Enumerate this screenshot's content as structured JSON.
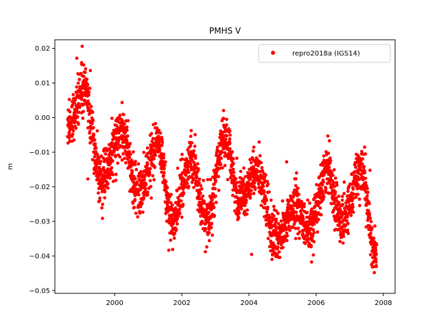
{
  "chart_data": {
    "type": "scatter",
    "title": "PMHS V",
    "xlabel": "",
    "ylabel": "m",
    "xlim": [
      1998.22,
      2008.35
    ],
    "ylim": [
      -0.0508,
      0.0225
    ],
    "x_ticks": [
      2000,
      2002,
      2004,
      2006,
      2008
    ],
    "x_tick_labels": [
      "2000",
      "2002",
      "2004",
      "2006",
      "2008"
    ],
    "y_ticks": [
      -0.05,
      -0.04,
      -0.03,
      -0.02,
      -0.01,
      0.0,
      0.01,
      0.02
    ],
    "y_tick_labels": [
      "−0.05",
      "−0.04",
      "−0.03",
      "−0.02",
      "−0.01",
      "0.00",
      "0.01",
      "0.02"
    ],
    "grid": false,
    "legend_position": "upper-right",
    "series": [
      {
        "name": "repro2018a (IGS14)",
        "color": "#ff0000",
        "marker": "circle",
        "x_range": [
          1998.6,
          2007.8
        ],
        "trend_points": [
          {
            "x": 1998.6,
            "y": -0.002
          },
          {
            "x": 1999.1,
            "y": 0.008
          },
          {
            "x": 1999.6,
            "y": -0.018
          },
          {
            "x": 2000.2,
            "y": -0.004
          },
          {
            "x": 2000.7,
            "y": -0.022
          },
          {
            "x": 2001.3,
            "y": -0.008
          },
          {
            "x": 2001.7,
            "y": -0.03
          },
          {
            "x": 2002.3,
            "y": -0.012
          },
          {
            "x": 2002.7,
            "y": -0.03
          },
          {
            "x": 2003.3,
            "y": -0.006
          },
          {
            "x": 2003.7,
            "y": -0.025
          },
          {
            "x": 2004.2,
            "y": -0.015
          },
          {
            "x": 2004.8,
            "y": -0.035
          },
          {
            "x": 2005.4,
            "y": -0.026
          },
          {
            "x": 2005.8,
            "y": -0.033
          },
          {
            "x": 2006.3,
            "y": -0.015
          },
          {
            "x": 2006.8,
            "y": -0.03
          },
          {
            "x": 2007.3,
            "y": -0.015
          },
          {
            "x": 2007.8,
            "y": -0.04
          }
        ],
        "spread": 0.0045,
        "n_points": 2600
      }
    ]
  }
}
